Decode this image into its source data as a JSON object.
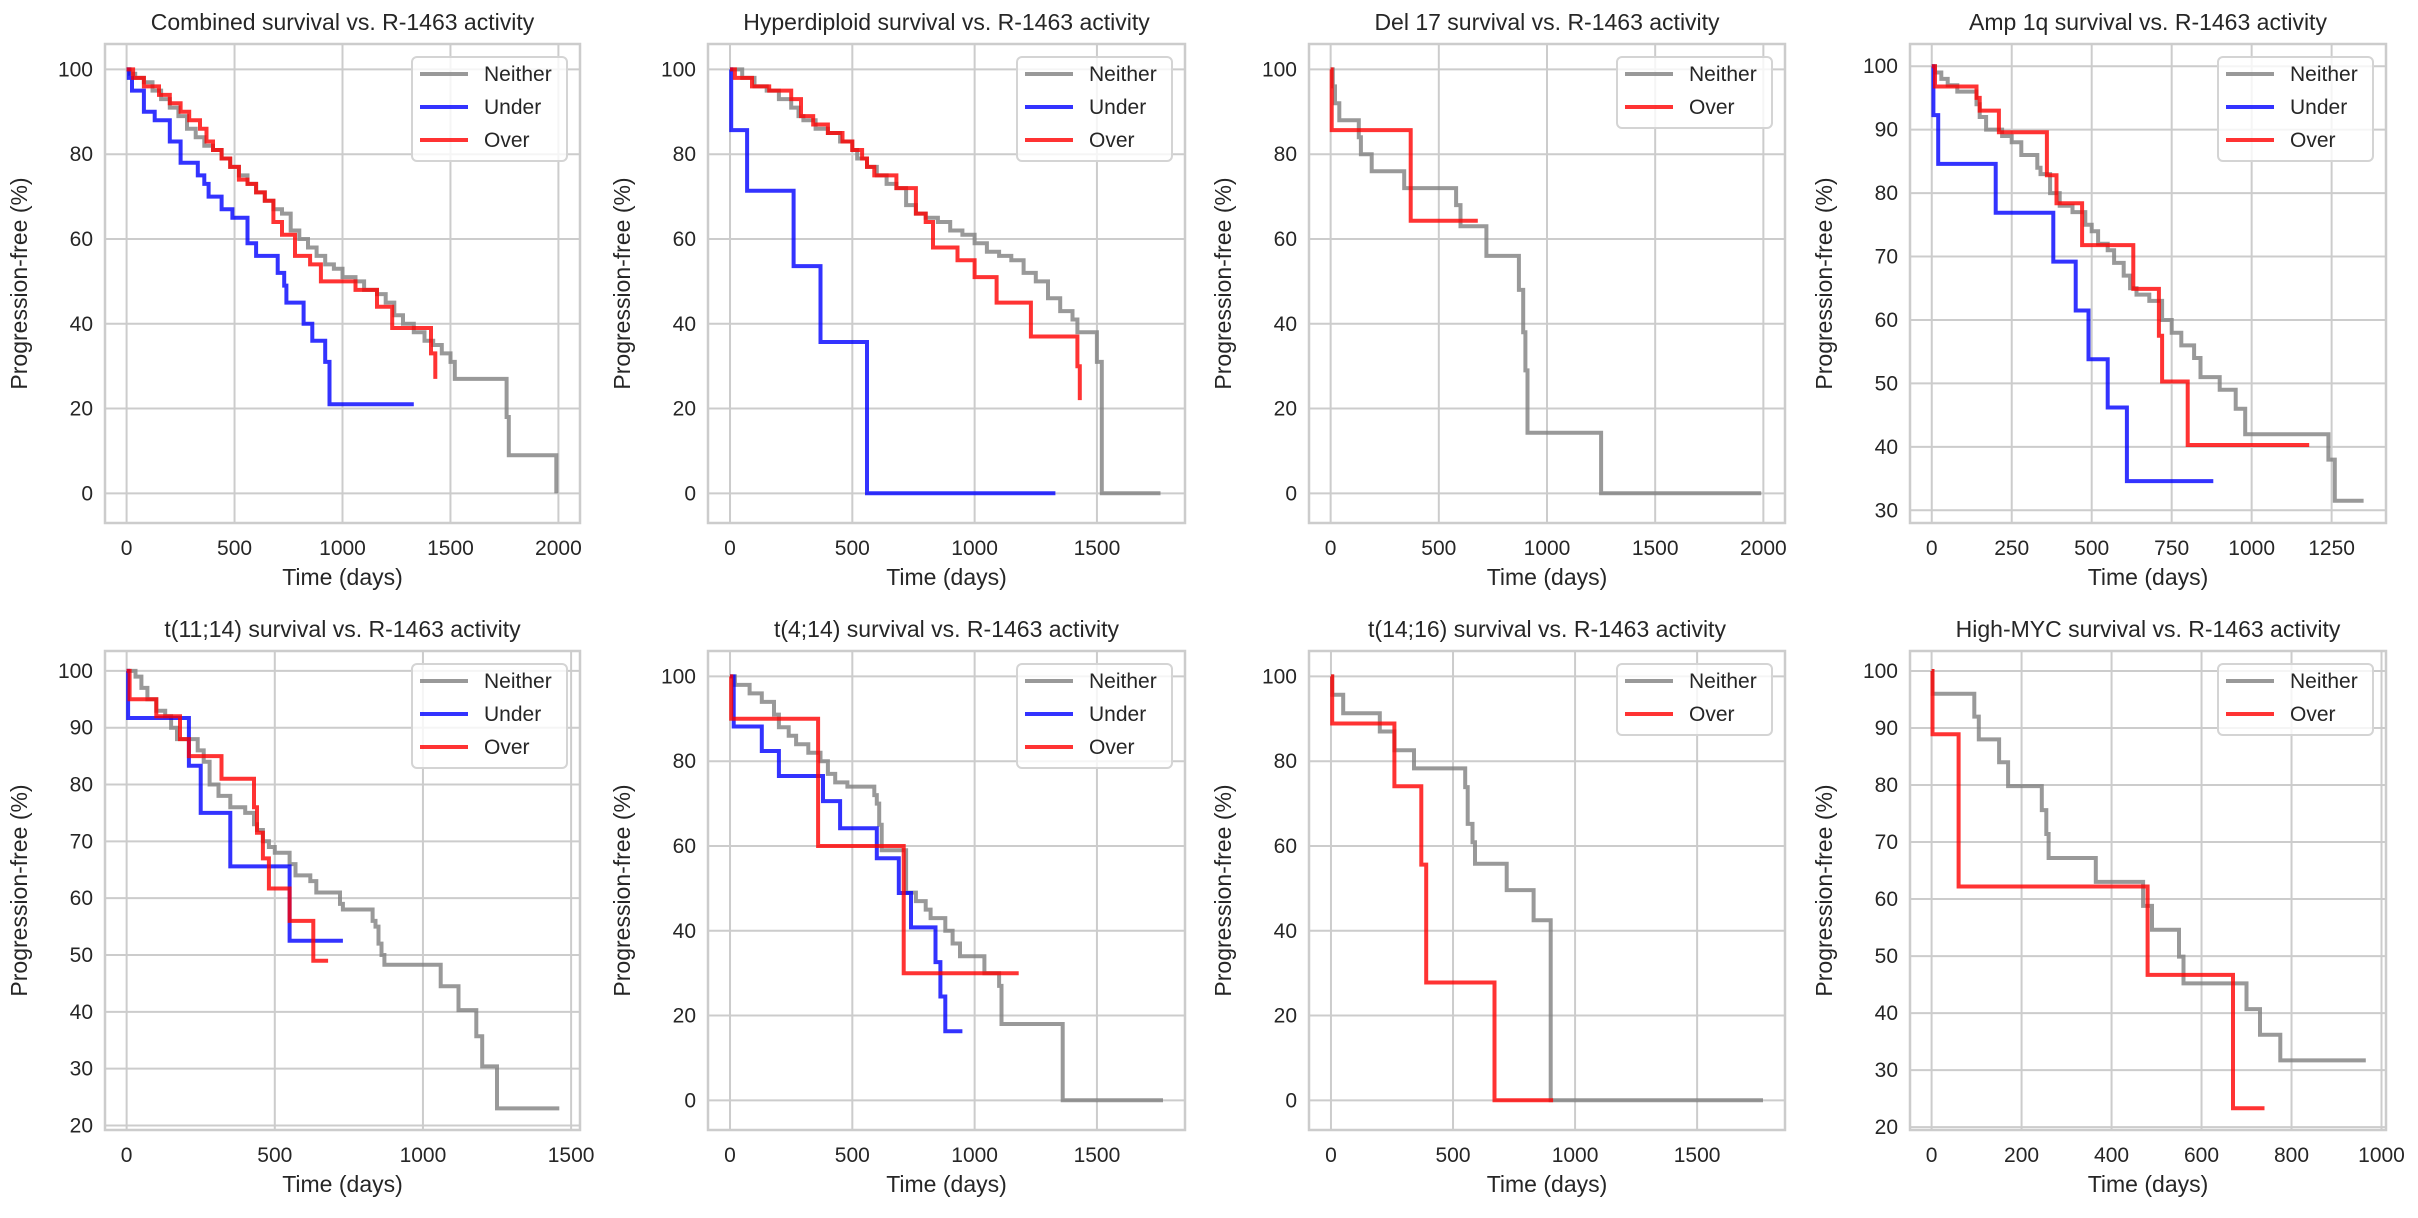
{
  "colors": {
    "Neither": "#808080",
    "Under": "#0000ff",
    "Over": "#ff0000",
    "grid": "#cccccc",
    "text": "#262626"
  },
  "chart_data": [
    {
      "type": "line",
      "step": true,
      "title": "Combined survival vs. R-1463 activity",
      "xlabel": "Time (days)",
      "ylabel": "Progression-free (%)",
      "xlim": [
        -100,
        2100
      ],
      "ylim": [
        -7,
        106
      ],
      "xticks": [
        0,
        500,
        1000,
        1500,
        2000
      ],
      "yticks": [
        0,
        20,
        40,
        60,
        80,
        100
      ],
      "grid": true,
      "legend": "top-right",
      "series": [
        {
          "name": "Neither",
          "x": [
            0,
            15,
            40,
            80,
            120,
            160,
            200,
            240,
            280,
            320,
            360,
            400,
            440,
            480,
            520,
            560,
            600,
            640,
            680,
            720,
            760,
            800,
            840,
            880,
            920,
            960,
            1000,
            1060,
            1100,
            1160,
            1200,
            1240,
            1280,
            1330,
            1380,
            1420,
            1460,
            1500,
            1520,
            1760,
            1770,
            1990
          ],
          "y": [
            100,
            99,
            98,
            97,
            95,
            93,
            91,
            89,
            86,
            84,
            82,
            81,
            79,
            77,
            75,
            73,
            71,
            69,
            67,
            66,
            62,
            60,
            58,
            56,
            54,
            53,
            51,
            50,
            48,
            47,
            45,
            42,
            40,
            38,
            36,
            35,
            33,
            31,
            27,
            18,
            9,
            0
          ]
        },
        {
          "name": "Under",
          "x": [
            0,
            10,
            25,
            80,
            130,
            200,
            250,
            330,
            360,
            380,
            440,
            490,
            560,
            600,
            700,
            730,
            740,
            820,
            860,
            920,
            940,
            1330
          ],
          "y": [
            100,
            98,
            95,
            90,
            88,
            83,
            78,
            75,
            73,
            70,
            67,
            65,
            59,
            56,
            52,
            49,
            45,
            40,
            36,
            31,
            21,
            21
          ]
        },
        {
          "name": "Over",
          "x": [
            0,
            30,
            80,
            150,
            200,
            250,
            290,
            340,
            370,
            400,
            440,
            480,
            520,
            560,
            600,
            640,
            680,
            720,
            780,
            850,
            900,
            1000,
            1060,
            1160,
            1230,
            1260,
            1410,
            1430
          ],
          "y": [
            100,
            98,
            96,
            94,
            92,
            90,
            88,
            86,
            83,
            81,
            79,
            77,
            74,
            73,
            71,
            69,
            64,
            61,
            56,
            54,
            50,
            50,
            48,
            44,
            39,
            39,
            33,
            27
          ]
        }
      ]
    },
    {
      "type": "line",
      "step": true,
      "title": "Hyperdiploid survival vs. R-1463 activity",
      "xlabel": "Time (days)",
      "ylabel": "Progression-free (%)",
      "xlim": [
        -90,
        1860
      ],
      "ylim": [
        -7,
        106
      ],
      "xticks": [
        0,
        500,
        1000,
        1500
      ],
      "yticks": [
        0,
        20,
        40,
        60,
        80,
        100
      ],
      "grid": true,
      "legend": "top-right",
      "series": [
        {
          "name": "Neither",
          "x": [
            0,
            50,
            100,
            150,
            200,
            250,
            280,
            300,
            350,
            400,
            450,
            500,
            520,
            560,
            600,
            640,
            680,
            720,
            760,
            800,
            850,
            900,
            950,
            1000,
            1050,
            1100,
            1150,
            1200,
            1250,
            1300,
            1350,
            1400,
            1420,
            1500,
            1520,
            1760
          ],
          "y": [
            100,
            98,
            96,
            95,
            93,
            91,
            89,
            88,
            86,
            85,
            83,
            81,
            79,
            77,
            75,
            73,
            72,
            68,
            66,
            65,
            64,
            62,
            61,
            59,
            57,
            56,
            55,
            52,
            50,
            46,
            43,
            41,
            38,
            31,
            0,
            0
          ]
        },
        {
          "name": "Under",
          "x": [
            0,
            5,
            70,
            260,
            370,
            560,
            1330
          ],
          "y": [
            100,
            85.7,
            71.4,
            53.6,
            35.7,
            0,
            0
          ]
        },
        {
          "name": "Over",
          "x": [
            0,
            20,
            90,
            160,
            250,
            290,
            340,
            400,
            460,
            500,
            540,
            560,
            590,
            680,
            760,
            800,
            830,
            930,
            1000,
            1090,
            1230,
            1420,
            1430
          ],
          "y": [
            100,
            98,
            96,
            95,
            93,
            89,
            87,
            85,
            83,
            81,
            79,
            77,
            75,
            72,
            66,
            64,
            58,
            55,
            51,
            45,
            37,
            30,
            22
          ]
        }
      ]
    },
    {
      "type": "line",
      "step": true,
      "title": "Del 17 survival vs. R-1463 activity",
      "xlabel": "Time (days)",
      "ylabel": "Progression-free (%)",
      "xlim": [
        -100,
        2100
      ],
      "ylim": [
        -7,
        106
      ],
      "xticks": [
        0,
        500,
        1000,
        1500,
        2000
      ],
      "yticks": [
        0,
        20,
        40,
        60,
        80,
        100
      ],
      "grid": true,
      "legend": "top-right",
      "series": [
        {
          "name": "Neither",
          "x": [
            0,
            10,
            20,
            40,
            130,
            140,
            190,
            340,
            580,
            600,
            720,
            870,
            890,
            900,
            910,
            1250,
            1990
          ],
          "y": [
            100,
            96,
            92,
            88,
            84,
            80,
            76,
            72,
            68,
            63,
            56,
            48,
            38,
            29,
            14.3,
            0,
            0
          ]
        },
        {
          "name": "Over",
          "x": [
            0,
            5,
            370,
            680
          ],
          "y": [
            100,
            85.7,
            64.3,
            64.3
          ]
        }
      ]
    },
    {
      "type": "line",
      "step": true,
      "title": "Amp 1q survival vs. R-1463 activity",
      "xlabel": "Time (days)",
      "ylabel": "Progression-free (%)",
      "xlim": [
        -68,
        1420
      ],
      "ylim": [
        28,
        103.5
      ],
      "xticks": [
        0,
        250,
        500,
        750,
        1000,
        1250
      ],
      "yticks": [
        30,
        40,
        50,
        60,
        70,
        80,
        90,
        100
      ],
      "grid": true,
      "legend": "top-right",
      "series": [
        {
          "name": "Neither",
          "x": [
            0,
            10,
            30,
            50,
            80,
            140,
            150,
            170,
            220,
            250,
            280,
            330,
            340,
            370,
            400,
            440,
            480,
            500,
            520,
            550,
            570,
            600,
            620,
            640,
            680,
            720,
            750,
            780,
            820,
            840,
            900,
            950,
            980,
            1240,
            1260,
            1350
          ],
          "y": [
            100,
            99,
            98,
            97,
            96,
            94,
            92,
            90,
            89,
            88,
            86,
            84,
            83,
            80,
            78,
            77,
            75,
            74,
            72,
            71,
            69,
            67,
            65,
            64,
            63,
            60,
            58,
            56,
            54,
            51,
            49,
            46,
            42,
            38,
            31.5,
            31.5
          ]
        },
        {
          "name": "Under",
          "x": [
            0,
            5,
            20,
            200,
            380,
            450,
            490,
            550,
            610,
            880
          ],
          "y": [
            100,
            92.3,
            84.6,
            76.9,
            69.2,
            61.5,
            53.8,
            46.2,
            34.6,
            34.6
          ]
        },
        {
          "name": "Over",
          "x": [
            0,
            10,
            140,
            150,
            210,
            360,
            390,
            470,
            630,
            710,
            720,
            800,
            1180
          ],
          "y": [
            100,
            96.8,
            95,
            93,
            89.6,
            82.8,
            78.4,
            71.8,
            64.9,
            57.5,
            50.3,
            40.3,
            40.3
          ]
        }
      ]
    },
    {
      "type": "line",
      "step": true,
      "title": "t(11;14) survival vs. R-1463 activity",
      "xlabel": "Time (days)",
      "ylabel": "Progression-free (%)",
      "xlim": [
        -73,
        1530
      ],
      "ylim": [
        19.2,
        103.5
      ],
      "xticks": [
        0,
        500,
        1000,
        1500
      ],
      "yticks": [
        20,
        30,
        40,
        50,
        60,
        70,
        80,
        90,
        100
      ],
      "grid": true,
      "legend": "top-right",
      "series": [
        {
          "name": "Neither",
          "x": [
            0,
            30,
            50,
            70,
            100,
            130,
            150,
            170,
            240,
            260,
            280,
            310,
            350,
            400,
            430,
            440,
            460,
            480,
            500,
            550,
            570,
            620,
            640,
            720,
            730,
            830,
            840,
            850,
            860,
            870,
            1060,
            1120,
            1180,
            1200,
            1250,
            1460
          ],
          "y": [
            100,
            99,
            97,
            95,
            93,
            92,
            90,
            88,
            86,
            84,
            80,
            78,
            76,
            75,
            73,
            72,
            70,
            69,
            68,
            66,
            64,
            63,
            61,
            59,
            58,
            56,
            55,
            52,
            50,
            48.3,
            44.5,
            40.3,
            35.7,
            30.4,
            23,
            23
          ]
        },
        {
          "name": "Under",
          "x": [
            0,
            5,
            210,
            250,
            350,
            550,
            730
          ],
          "y": [
            100,
            91.7,
            83.3,
            75,
            65.6,
            52.5,
            52.5
          ]
        },
        {
          "name": "Over",
          "x": [
            0,
            10,
            100,
            180,
            210,
            320,
            430,
            440,
            460,
            480,
            550,
            630,
            680
          ],
          "y": [
            100,
            95,
            92,
            88,
            85,
            81,
            76,
            71.5,
            67,
            61.7,
            56,
            49,
            49
          ]
        }
      ]
    },
    {
      "type": "line",
      "step": true,
      "title": "t(4;14) survival vs. R-1463 activity",
      "xlabel": "Time (days)",
      "ylabel": "Progression-free (%)",
      "xlim": [
        -90,
        1860
      ],
      "ylim": [
        -7,
        106
      ],
      "xticks": [
        0,
        500,
        1000,
        1500
      ],
      "yticks": [
        0,
        20,
        40,
        60,
        80,
        100
      ],
      "grid": true,
      "legend": "top-right",
      "series": [
        {
          "name": "Neither",
          "x": [
            0,
            20,
            80,
            130,
            180,
            200,
            240,
            270,
            320,
            370,
            400,
            430,
            480,
            590,
            600,
            610,
            620,
            640,
            720,
            760,
            800,
            820,
            880,
            910,
            940,
            1040,
            1100,
            1110,
            1360,
            1770
          ],
          "y": [
            100,
            98,
            96,
            94,
            91,
            88,
            86,
            84,
            82,
            80,
            77,
            75,
            74,
            72,
            70,
            65,
            59,
            59,
            49,
            47,
            45,
            43,
            40,
            37,
            34,
            30,
            27,
            18,
            0,
            0
          ]
        },
        {
          "name": "Under",
          "x": [
            0,
            15,
            130,
            200,
            380,
            450,
            600,
            690,
            740,
            840,
            860,
            880,
            950
          ],
          "y": [
            100,
            88.2,
            82.4,
            76.5,
            70.6,
            64.2,
            57.1,
            48.9,
            40.8,
            32.6,
            24.5,
            16.3,
            16.3
          ]
        },
        {
          "name": "Over",
          "x": [
            0,
            5,
            360,
            710,
            1180
          ],
          "y": [
            100,
            90,
            60,
            30,
            30
          ]
        }
      ]
    },
    {
      "type": "line",
      "step": true,
      "title": "t(14;16) survival vs. R-1463 activity",
      "xlabel": "Time (days)",
      "ylabel": "Progression-free (%)",
      "xlim": [
        -90,
        1860
      ],
      "ylim": [
        -7,
        106
      ],
      "xticks": [
        0,
        500,
        1000,
        1500
      ],
      "yticks": [
        0,
        20,
        40,
        60,
        80,
        100
      ],
      "grid": true,
      "legend": "top-right",
      "series": [
        {
          "name": "Neither",
          "x": [
            0,
            5,
            50,
            200,
            260,
            340,
            550,
            560,
            580,
            590,
            720,
            830,
            900,
            1770
          ],
          "y": [
            100,
            95.7,
            91.3,
            87,
            82.6,
            78.3,
            73.9,
            65.2,
            60.9,
            55.8,
            49.6,
            42.5,
            0,
            0
          ]
        },
        {
          "name": "Over",
          "x": [
            0,
            5,
            260,
            370,
            390,
            670,
            910
          ],
          "y": [
            100,
            88.9,
            74.1,
            55.6,
            27.8,
            0,
            0
          ]
        }
      ]
    },
    {
      "type": "line",
      "step": true,
      "title": "High-MYC survival vs. R-1463 activity",
      "xlabel": "Time (days)",
      "ylabel": "Progression-free (%)",
      "xlim": [
        -48,
        1010
      ],
      "ylim": [
        19.5,
        103.5
      ],
      "xticks": [
        0,
        200,
        400,
        600,
        800,
        1000
      ],
      "yticks": [
        20,
        30,
        40,
        50,
        60,
        70,
        80,
        90,
        100
      ],
      "grid": true,
      "legend": "top-right",
      "series": [
        {
          "name": "Neither",
          "x": [
            0,
            2,
            95,
            105,
            150,
            170,
            245,
            255,
            260,
            365,
            470,
            490,
            550,
            560,
            700,
            730,
            775,
            965
          ],
          "y": [
            100,
            96,
            92,
            88,
            84,
            79.8,
            75.6,
            71.4,
            67.2,
            63,
            58.8,
            54.6,
            49.9,
            45.2,
            40.7,
            36.2,
            31.7,
            31.7
          ]
        },
        {
          "name": "Over",
          "x": [
            0,
            2,
            60,
            480,
            670,
            740
          ],
          "y": [
            100,
            88.9,
            62.2,
            46.7,
            23.3,
            23.3
          ]
        }
      ]
    }
  ]
}
